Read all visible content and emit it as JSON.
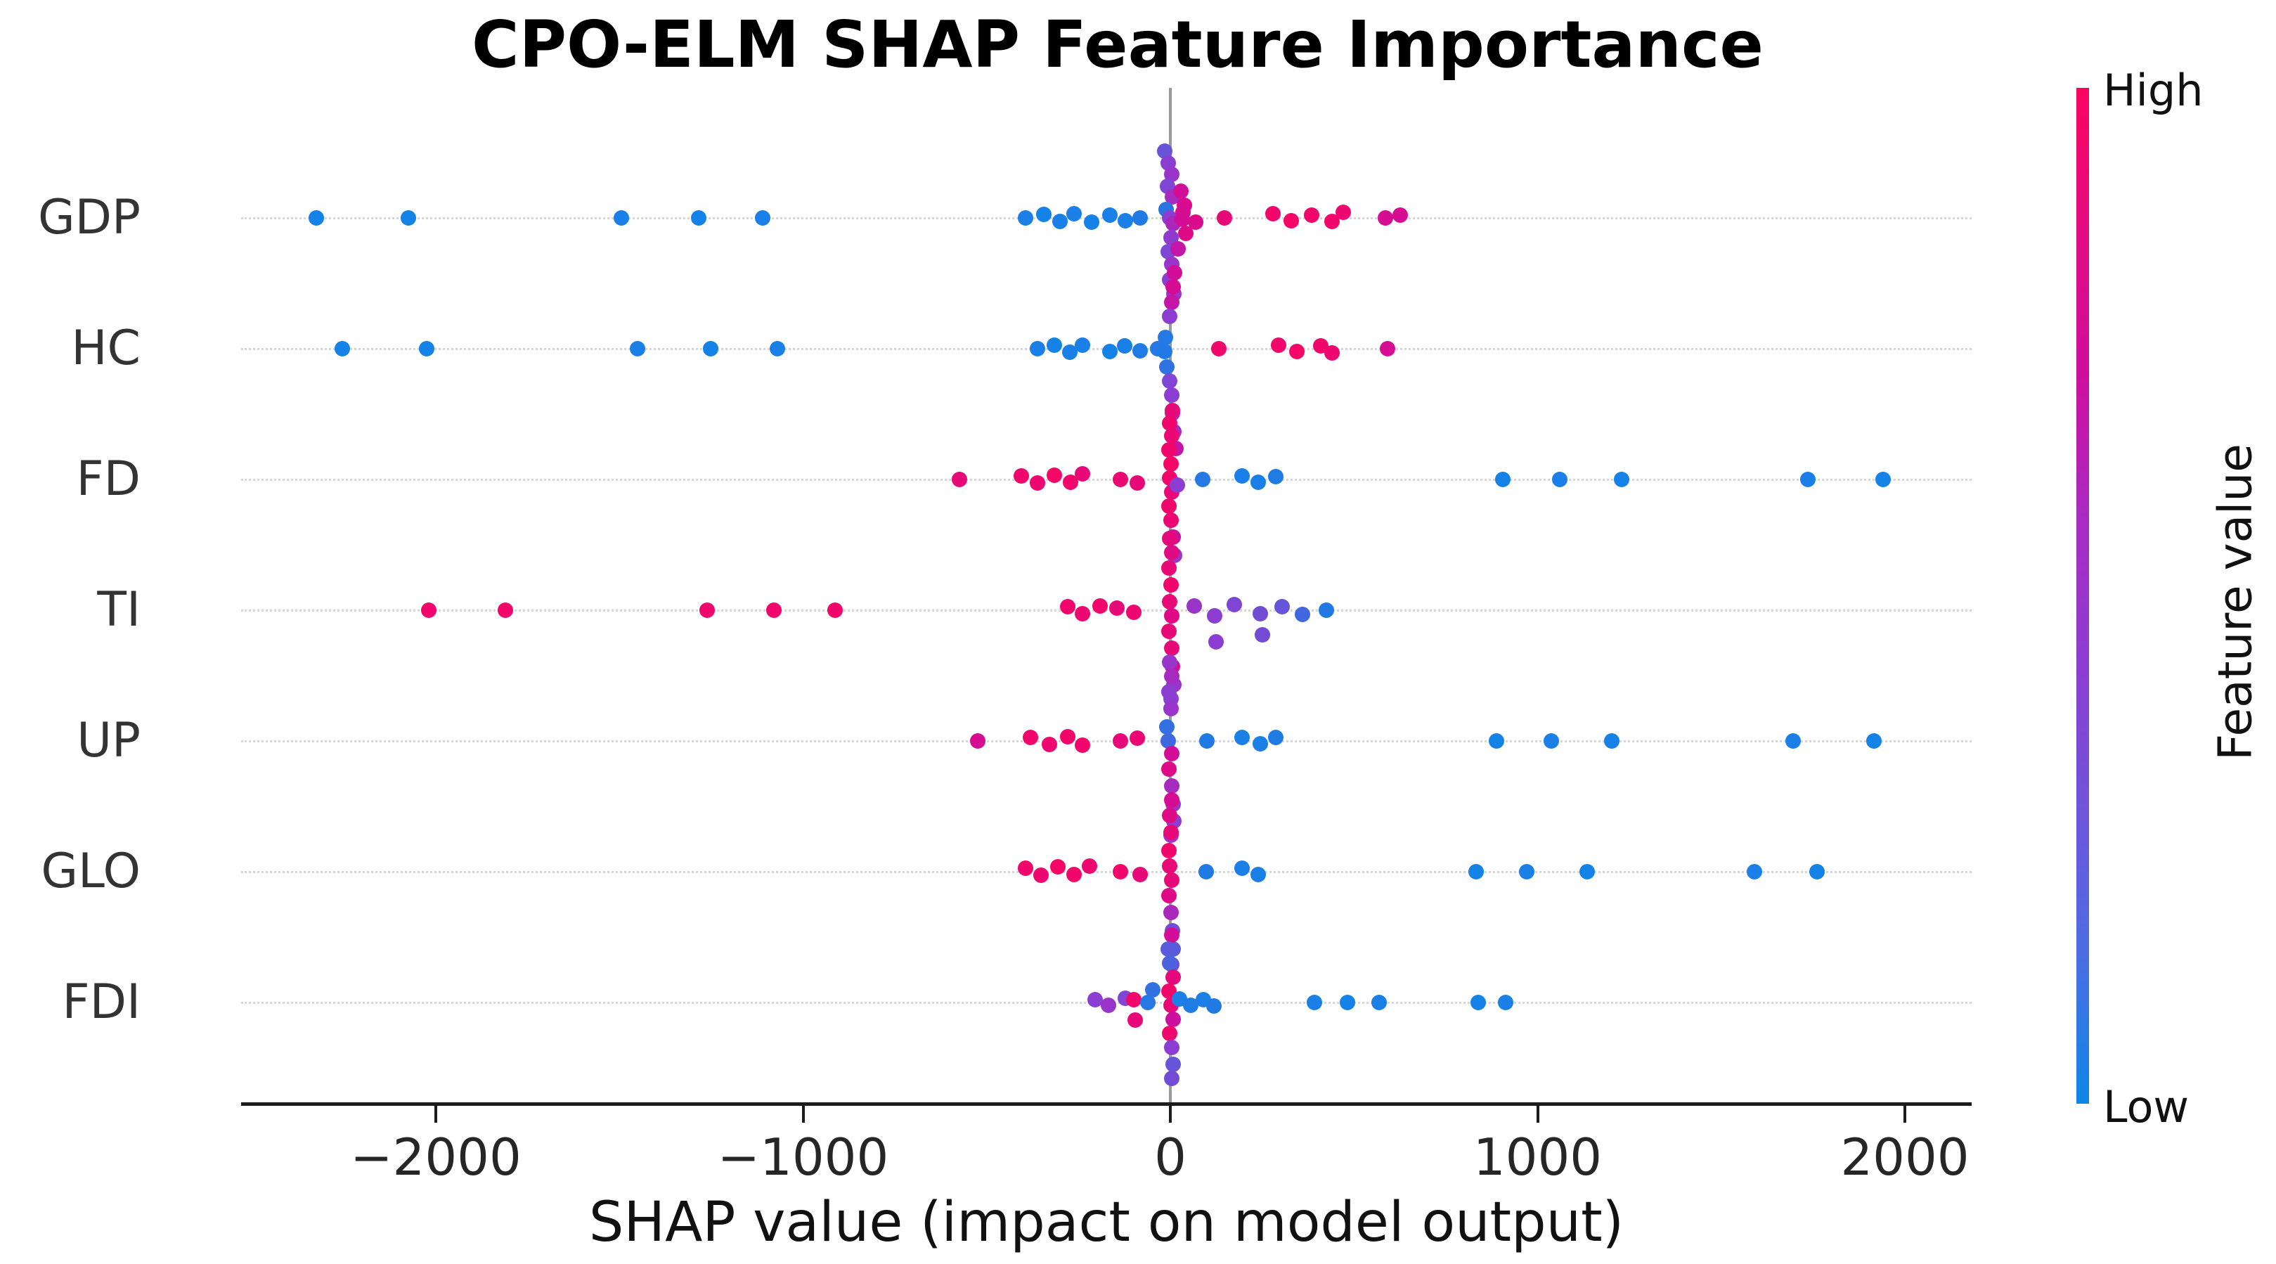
{
  "title": "CPO-ELM SHAP Feature Importance",
  "xlabel": "SHAP value (impact on model output)",
  "colorbar": {
    "high_label": "High",
    "low_label": "Low",
    "axis_label": "Feature value",
    "top_color": "#fa055f",
    "bottom_color": "#0d86e8",
    "gradient": [
      "#fa055f",
      "#e30b83",
      "#cd0f9e",
      "#a82cc3",
      "#8c3ed2",
      "#6e55da",
      "#4b6ee2",
      "#0d86e8"
    ]
  },
  "chart_data": {
    "type": "scatter",
    "subtype": "shap-beeswarm",
    "title": "CPO-ELM SHAP Feature Importance",
    "xlabel": "SHAP value (impact on model output)",
    "features": [
      "GDP",
      "HC",
      "FD",
      "TI",
      "UP",
      "GLO",
      "FDI"
    ],
    "x_ticks": [
      {
        "label": "−2000",
        "v": -2000
      },
      {
        "label": "−1000",
        "v": -1000
      },
      {
        "label": "0",
        "v": 0
      },
      {
        "label": "1000",
        "v": 1000
      },
      {
        "label": "2000",
        "v": 2000
      }
    ],
    "xlim": [
      -2530,
      2175
    ],
    "grid": "dotted-horizontal",
    "legend_position": "right-colorbar",
    "colormap_stops": [
      [
        0,
        13,
        134,
        232
      ],
      [
        0.5,
        140,
        62,
        210
      ],
      [
        0.75,
        205,
        15,
        160
      ],
      [
        1,
        250,
        5,
        95
      ]
    ],
    "point_format": [
      "shap_value",
      "y_jitter_px",
      "feature_value_norm"
    ],
    "rows": [
      {
        "feature": "GDP",
        "points": [
          [
            -2325,
            0,
            0.03
          ],
          [
            -2075,
            0,
            0.03
          ],
          [
            -1495,
            0,
            0.05
          ],
          [
            -1285,
            0,
            0.03
          ],
          [
            -1110,
            0,
            0.05
          ],
          [
            -395,
            0,
            0.05
          ],
          [
            -345,
            -5,
            0.03
          ],
          [
            -300,
            5,
            0.05
          ],
          [
            -262,
            -6,
            0.05
          ],
          [
            -215,
            6,
            0.03
          ],
          [
            -165,
            -4,
            0.05
          ],
          [
            -122,
            4,
            0.05
          ],
          [
            -82,
            0,
            0.08
          ],
          [
            -15,
            -95,
            0.35
          ],
          [
            -5,
            -78,
            0.5
          ],
          [
            3,
            -62,
            0.55
          ],
          [
            -8,
            -45,
            0.45
          ],
          [
            5,
            -30,
            0.6
          ],
          [
            -12,
            -12,
            0.12
          ],
          [
            -2,
            0,
            0.5
          ],
          [
            8,
            8,
            0.62
          ],
          [
            28,
            -38,
            0.78
          ],
          [
            38,
            -18,
            0.82
          ],
          [
            33,
            2,
            0.78
          ],
          [
            42,
            22,
            0.85
          ],
          [
            2,
            28,
            0.52
          ],
          [
            -6,
            48,
            0.45
          ],
          [
            4,
            66,
            0.55
          ],
          [
            -2,
            88,
            0.5
          ],
          [
            22,
            44,
            0.72
          ],
          [
            10,
            108,
            0.55
          ],
          [
            35,
            -8,
            0.8
          ],
          [
            68,
            6,
            0.82
          ],
          [
            148,
            0,
            0.9
          ],
          [
            280,
            -6,
            0.95
          ],
          [
            330,
            4,
            0.97
          ],
          [
            385,
            -4,
            0.95
          ],
          [
            440,
            5,
            0.95
          ],
          [
            470,
            -8,
            0.93
          ],
          [
            585,
            0,
            0.8
          ],
          [
            625,
            -4,
            0.8
          ]
        ]
      },
      {
        "feature": "HC",
        "points": [
          [
            -2255,
            0,
            0.03
          ],
          [
            -2025,
            0,
            0.03
          ],
          [
            -1450,
            0,
            0.05
          ],
          [
            -1252,
            0,
            0.03
          ],
          [
            -1070,
            0,
            0.05
          ],
          [
            -362,
            0,
            0.05
          ],
          [
            -315,
            -5,
            0.03
          ],
          [
            -273,
            5,
            0.05
          ],
          [
            -240,
            -5,
            0.05
          ],
          [
            -165,
            4,
            0.03
          ],
          [
            -125,
            -4,
            0.05
          ],
          [
            -82,
            3,
            0.07
          ],
          [
            -35,
            0,
            0.1
          ],
          [
            12,
            -108,
            0.78
          ],
          [
            8,
            -88,
            0.8
          ],
          [
            4,
            -66,
            0.72
          ],
          [
            -2,
            -46,
            0.5
          ],
          [
            -14,
            -16,
            0.1
          ],
          [
            -16,
            4,
            0.08
          ],
          [
            -10,
            26,
            0.14
          ],
          [
            -2,
            46,
            0.45
          ],
          [
            4,
            66,
            0.5
          ],
          [
            6,
            92,
            0.55
          ],
          [
            10,
            118,
            0.6
          ],
          [
            16,
            142,
            0.72
          ],
          [
            132,
            0,
            0.95
          ],
          [
            295,
            -5,
            0.95
          ],
          [
            345,
            4,
            0.97
          ],
          [
            410,
            -4,
            0.95
          ],
          [
            440,
            6,
            0.93
          ],
          [
            592,
            0,
            0.8
          ]
        ]
      },
      {
        "feature": "FD",
        "points": [
          [
            -575,
            0,
            0.9
          ],
          [
            -405,
            -5,
            0.95
          ],
          [
            -362,
            5,
            0.93
          ],
          [
            -315,
            -6,
            0.97
          ],
          [
            -272,
            4,
            0.95
          ],
          [
            -240,
            -8,
            0.9
          ],
          [
            -135,
            0,
            0.93
          ],
          [
            -90,
            5,
            0.9
          ],
          [
            6,
            -98,
            0.9
          ],
          [
            -2,
            -80,
            0.95
          ],
          [
            4,
            -62,
            0.92
          ],
          [
            -4,
            -42,
            0.95
          ],
          [
            2,
            -22,
            0.97
          ],
          [
            -2,
            -2,
            0.95
          ],
          [
            4,
            18,
            0.9
          ],
          [
            -3,
            38,
            0.95
          ],
          [
            2,
            58,
            0.92
          ],
          [
            7,
            82,
            0.75
          ],
          [
            11,
            108,
            0.55
          ],
          [
            20,
            8,
            0.5
          ],
          [
            88,
            0,
            0.1
          ],
          [
            195,
            -5,
            0.05
          ],
          [
            240,
            4,
            0.05
          ],
          [
            288,
            -4,
            0.07
          ],
          [
            905,
            0,
            0.03
          ],
          [
            1060,
            0,
            0.05
          ],
          [
            1228,
            0,
            0.03
          ],
          [
            1735,
            0,
            0.05
          ],
          [
            1940,
            0,
            0.03
          ]
        ]
      },
      {
        "feature": "TI",
        "points": [
          [
            -2020,
            0,
            0.95
          ],
          [
            -1810,
            0,
            0.95
          ],
          [
            -1262,
            0,
            0.95
          ],
          [
            -1080,
            0,
            0.95
          ],
          [
            -912,
            0,
            0.95
          ],
          [
            -280,
            -5,
            0.95
          ],
          [
            -240,
            5,
            0.93
          ],
          [
            -192,
            -6,
            0.95
          ],
          [
            -145,
            -3,
            0.9
          ],
          [
            -100,
            3,
            0.93
          ],
          [
            -2,
            -102,
            0.88
          ],
          [
            4,
            -82,
            0.85
          ],
          [
            -4,
            -60,
            0.9
          ],
          [
            2,
            -36,
            0.95
          ],
          [
            -2,
            -12,
            0.9
          ],
          [
            4,
            8,
            0.85
          ],
          [
            -3,
            30,
            0.9
          ],
          [
            3,
            54,
            0.9
          ],
          [
            6,
            80,
            0.78
          ],
          [
            9,
            106,
            0.55
          ],
          [
            2,
            126,
            0.5
          ],
          [
            65,
            -6,
            0.55
          ],
          [
            120,
            8,
            0.5
          ],
          [
            125,
            45,
            0.5
          ],
          [
            175,
            -8,
            0.45
          ],
          [
            245,
            5,
            0.4
          ],
          [
            250,
            35,
            0.4
          ],
          [
            305,
            -5,
            0.35
          ],
          [
            360,
            6,
            0.2
          ],
          [
            425,
            0,
            0.08
          ]
        ]
      },
      {
        "feature": "UP",
        "points": [
          [
            -525,
            0,
            0.8
          ],
          [
            -380,
            -5,
            0.95
          ],
          [
            -330,
            5,
            0.93
          ],
          [
            -280,
            -6,
            0.95
          ],
          [
            -240,
            6,
            0.95
          ],
          [
            -135,
            0,
            0.9
          ],
          [
            -90,
            -4,
            0.92
          ],
          [
            -2,
            -112,
            0.55
          ],
          [
            4,
            -92,
            0.6
          ],
          [
            -4,
            -70,
            0.5
          ],
          [
            2,
            -46,
            0.55
          ],
          [
            -9,
            -20,
            0.15
          ],
          [
            -6,
            0,
            0.2
          ],
          [
            3,
            18,
            0.78
          ],
          [
            -3,
            40,
            0.85
          ],
          [
            4,
            64,
            0.6
          ],
          [
            7,
            90,
            0.55
          ],
          [
            9,
            114,
            0.5
          ],
          [
            2,
            134,
            0.55
          ],
          [
            100,
            0,
            0.08
          ],
          [
            195,
            -5,
            0.05
          ],
          [
            245,
            4,
            0.05
          ],
          [
            287,
            -5,
            0.07
          ],
          [
            888,
            0,
            0.03
          ],
          [
            1038,
            0,
            0.05
          ],
          [
            1202,
            0,
            0.03
          ],
          [
            1695,
            0,
            0.05
          ],
          [
            1915,
            0,
            0.03
          ]
        ]
      },
      {
        "feature": "GLO",
        "points": [
          [
            -395,
            -5,
            0.95
          ],
          [
            -352,
            5,
            0.93
          ],
          [
            -307,
            -7,
            0.97
          ],
          [
            -262,
            4,
            0.95
          ],
          [
            -220,
            -8,
            0.93
          ],
          [
            -135,
            0,
            0.95
          ],
          [
            -82,
            4,
            0.9
          ],
          [
            4,
            -102,
            0.8
          ],
          [
            -2,
            -80,
            0.85
          ],
          [
            2,
            -56,
            0.9
          ],
          [
            -4,
            -30,
            0.95
          ],
          [
            -1,
            -8,
            0.9
          ],
          [
            4,
            12,
            0.9
          ],
          [
            -3,
            34,
            0.85
          ],
          [
            2,
            58,
            0.62
          ],
          [
            5,
            84,
            0.38
          ],
          [
            7,
            110,
            0.3
          ],
          [
            3,
            132,
            0.45
          ],
          [
            98,
            0,
            0.08
          ],
          [
            195,
            -5,
            0.05
          ],
          [
            240,
            4,
            0.05
          ],
          [
            832,
            0,
            0.03
          ],
          [
            970,
            0,
            0.05
          ],
          [
            1135,
            0,
            0.03
          ],
          [
            1590,
            0,
            0.05
          ],
          [
            1760,
            0,
            0.03
          ]
        ]
      },
      {
        "feature": "FDI",
        "points": [
          [
            -205,
            -4,
            0.5
          ],
          [
            -168,
            4,
            0.55
          ],
          [
            -122,
            -6,
            0.45
          ],
          [
            -100,
            -4,
            0.95
          ],
          [
            -95,
            25,
            0.9
          ],
          [
            -62,
            0,
            0.1
          ],
          [
            -48,
            -18,
            0.15
          ],
          [
            4,
            -96,
            0.78
          ],
          [
            -6,
            -76,
            0.3
          ],
          [
            -1,
            -56,
            0.25
          ],
          [
            7,
            -36,
            0.88
          ],
          [
            -4,
            -16,
            0.95
          ],
          [
            2,
            4,
            0.9
          ],
          [
            7,
            24,
            0.75
          ],
          [
            -1,
            44,
            0.95
          ],
          [
            4,
            64,
            0.5
          ],
          [
            7,
            88,
            0.35
          ],
          [
            4,
            108,
            0.4
          ],
          [
            25,
            -5,
            0.05
          ],
          [
            55,
            4,
            0.07
          ],
          [
            90,
            -4,
            0.05
          ],
          [
            118,
            5,
            0.08
          ],
          [
            393,
            0,
            0.05
          ],
          [
            483,
            0,
            0.03
          ],
          [
            568,
            0,
            0.05
          ],
          [
            838,
            0,
            0.03
          ],
          [
            912,
            0,
            0.05
          ]
        ]
      }
    ]
  }
}
